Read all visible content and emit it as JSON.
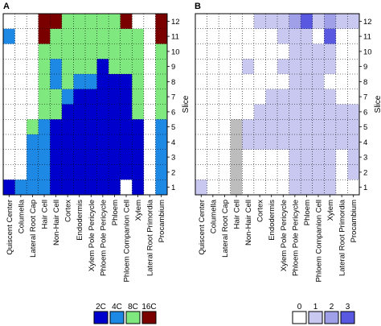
{
  "colors": {
    "phase_2C": "#0000cc",
    "phase_4C": "#1e88e5",
    "phase_8C": "#7fe87f",
    "phase_16C": "#7a0000",
    "score_0": "#ffffff",
    "score_1": "#c8c8f0",
    "score_2": "#a0a0e8",
    "score_3": "#5858e0",
    "special_gray": "#bdbdbd",
    "grid": "#000000"
  },
  "chart_data": [
    {
      "type": "heatmap",
      "panel": "A",
      "columns": [
        "Quiscent Center",
        "Columella",
        "Lateral Root Cap",
        "Hair Cell",
        "Non-Hair Cell",
        "Cortex",
        "Endodermis",
        "Xylem Pole Pericycle",
        "Phloem Pole Pericycle",
        "Phloem",
        "Phloem Companion Cell",
        "Xylem",
        "Lateral Root Primordia",
        "Procambium"
      ],
      "rows": [
        "12",
        "11",
        "10",
        "9",
        "8",
        "7",
        "6",
        "5",
        "4",
        "3",
        "2",
        "1"
      ],
      "ylabel": "Slice",
      "legend": [
        "2C",
        "4C",
        "8C",
        "16C"
      ],
      "cells": [
        [
          "0",
          "0",
          "0",
          "16C",
          "16C",
          "8C",
          "8C",
          "8C",
          "8C",
          "8C",
          "16C",
          "0",
          "0",
          "16C"
        ],
        [
          "4C",
          "0",
          "0",
          "16C",
          "8C",
          "8C",
          "8C",
          "8C",
          "8C",
          "8C",
          "8C",
          "8C",
          "0",
          "16C"
        ],
        [
          "0",
          "0",
          "0",
          "8C",
          "8C",
          "8C",
          "8C",
          "8C",
          "8C",
          "8C",
          "8C",
          "8C",
          "0",
          "8C"
        ],
        [
          "0",
          "0",
          "0",
          "8C",
          "4C",
          "8C",
          "8C",
          "8C",
          "2C",
          "8C",
          "8C",
          "8C",
          "0",
          "8C"
        ],
        [
          "0",
          "0",
          "0",
          "8C",
          "4C",
          "8C",
          "4C",
          "4C",
          "2C",
          "2C",
          "2C",
          "8C",
          "0",
          "8C"
        ],
        [
          "0",
          "0",
          "0",
          "8C",
          "8C",
          "4C",
          "2C",
          "2C",
          "2C",
          "2C",
          "2C",
          "8C",
          "0",
          "8C"
        ],
        [
          "0",
          "0",
          "0",
          "8C",
          "8C",
          "2C",
          "2C",
          "2C",
          "2C",
          "2C",
          "2C",
          "8C",
          "0",
          "8C"
        ],
        [
          "0",
          "0",
          "8C",
          "4C",
          "2C",
          "2C",
          "2C",
          "2C",
          "2C",
          "2C",
          "2C",
          "2C",
          "0",
          "4C"
        ],
        [
          "0",
          "0",
          "4C",
          "4C",
          "2C",
          "2C",
          "2C",
          "2C",
          "2C",
          "2C",
          "2C",
          "2C",
          "0",
          "4C"
        ],
        [
          "0",
          "0",
          "4C",
          "4C",
          "2C",
          "2C",
          "2C",
          "2C",
          "2C",
          "2C",
          "2C",
          "2C",
          "0",
          "4C"
        ],
        [
          "0",
          "0",
          "4C",
          "4C",
          "2C",
          "2C",
          "2C",
          "2C",
          "2C",
          "2C",
          "2C",
          "2C",
          "0",
          "4C"
        ],
        [
          "2C",
          "4C",
          "4C",
          "4C",
          "2C",
          "2C",
          "2C",
          "2C",
          "2C",
          "2C",
          "0",
          "2C",
          "0",
          "4C"
        ]
      ]
    },
    {
      "type": "heatmap",
      "panel": "B",
      "columns": [
        "Quiscent Center",
        "Columella",
        "Lateral Root Cap",
        "Hair Cell",
        "Non-Hair Cell",
        "Cortex",
        "Endodermis",
        "Xylem Pole Pericycle",
        "Phloem Pole Pericycle",
        "Phloem",
        "Phloem Companion Cell",
        "Xylem",
        "Lateral Root Primordia",
        "Procambium"
      ],
      "rows": [
        "12",
        "11",
        "10",
        "9",
        "8",
        "7",
        "6",
        "5",
        "4",
        "3",
        "2",
        "1"
      ],
      "ylabel": "Slice",
      "legend": [
        "0",
        "1",
        "2",
        "3"
      ],
      "cells": [
        [
          0,
          0,
          0,
          0,
          0,
          1,
          1,
          1,
          2,
          3,
          1,
          2,
          1,
          1
        ],
        [
          0,
          0,
          0,
          0,
          0,
          0,
          0,
          1,
          1,
          1,
          0,
          3,
          0,
          0
        ],
        [
          0,
          0,
          0,
          0,
          0,
          0,
          0,
          0,
          1,
          1,
          1,
          1,
          0,
          0
        ],
        [
          0,
          0,
          0,
          0,
          1,
          0,
          0,
          1,
          1,
          1,
          1,
          1,
          0,
          0
        ],
        [
          0,
          0,
          0,
          0,
          0,
          0,
          0,
          0,
          1,
          1,
          1,
          0,
          0,
          0
        ],
        [
          0,
          0,
          0,
          0,
          0,
          0,
          1,
          1,
          1,
          1,
          1,
          1,
          0,
          0
        ],
        [
          0,
          0,
          0,
          0,
          0,
          1,
          1,
          1,
          1,
          1,
          1,
          1,
          1,
          1
        ],
        [
          0,
          0,
          0,
          "g",
          1,
          1,
          1,
          1,
          1,
          1,
          1,
          1,
          1,
          1
        ],
        [
          0,
          0,
          0,
          "g",
          1,
          1,
          1,
          1,
          1,
          1,
          1,
          1,
          1,
          1
        ],
        [
          0,
          0,
          0,
          "g",
          0,
          0,
          0,
          0,
          1,
          1,
          1,
          1,
          0,
          1
        ],
        [
          0,
          0,
          0,
          "g",
          0,
          0,
          0,
          0,
          1,
          1,
          1,
          1,
          0,
          1
        ],
        [
          1,
          0,
          0,
          "g",
          0,
          0,
          0,
          0,
          1,
          1,
          1,
          1,
          0,
          0
        ]
      ]
    }
  ]
}
